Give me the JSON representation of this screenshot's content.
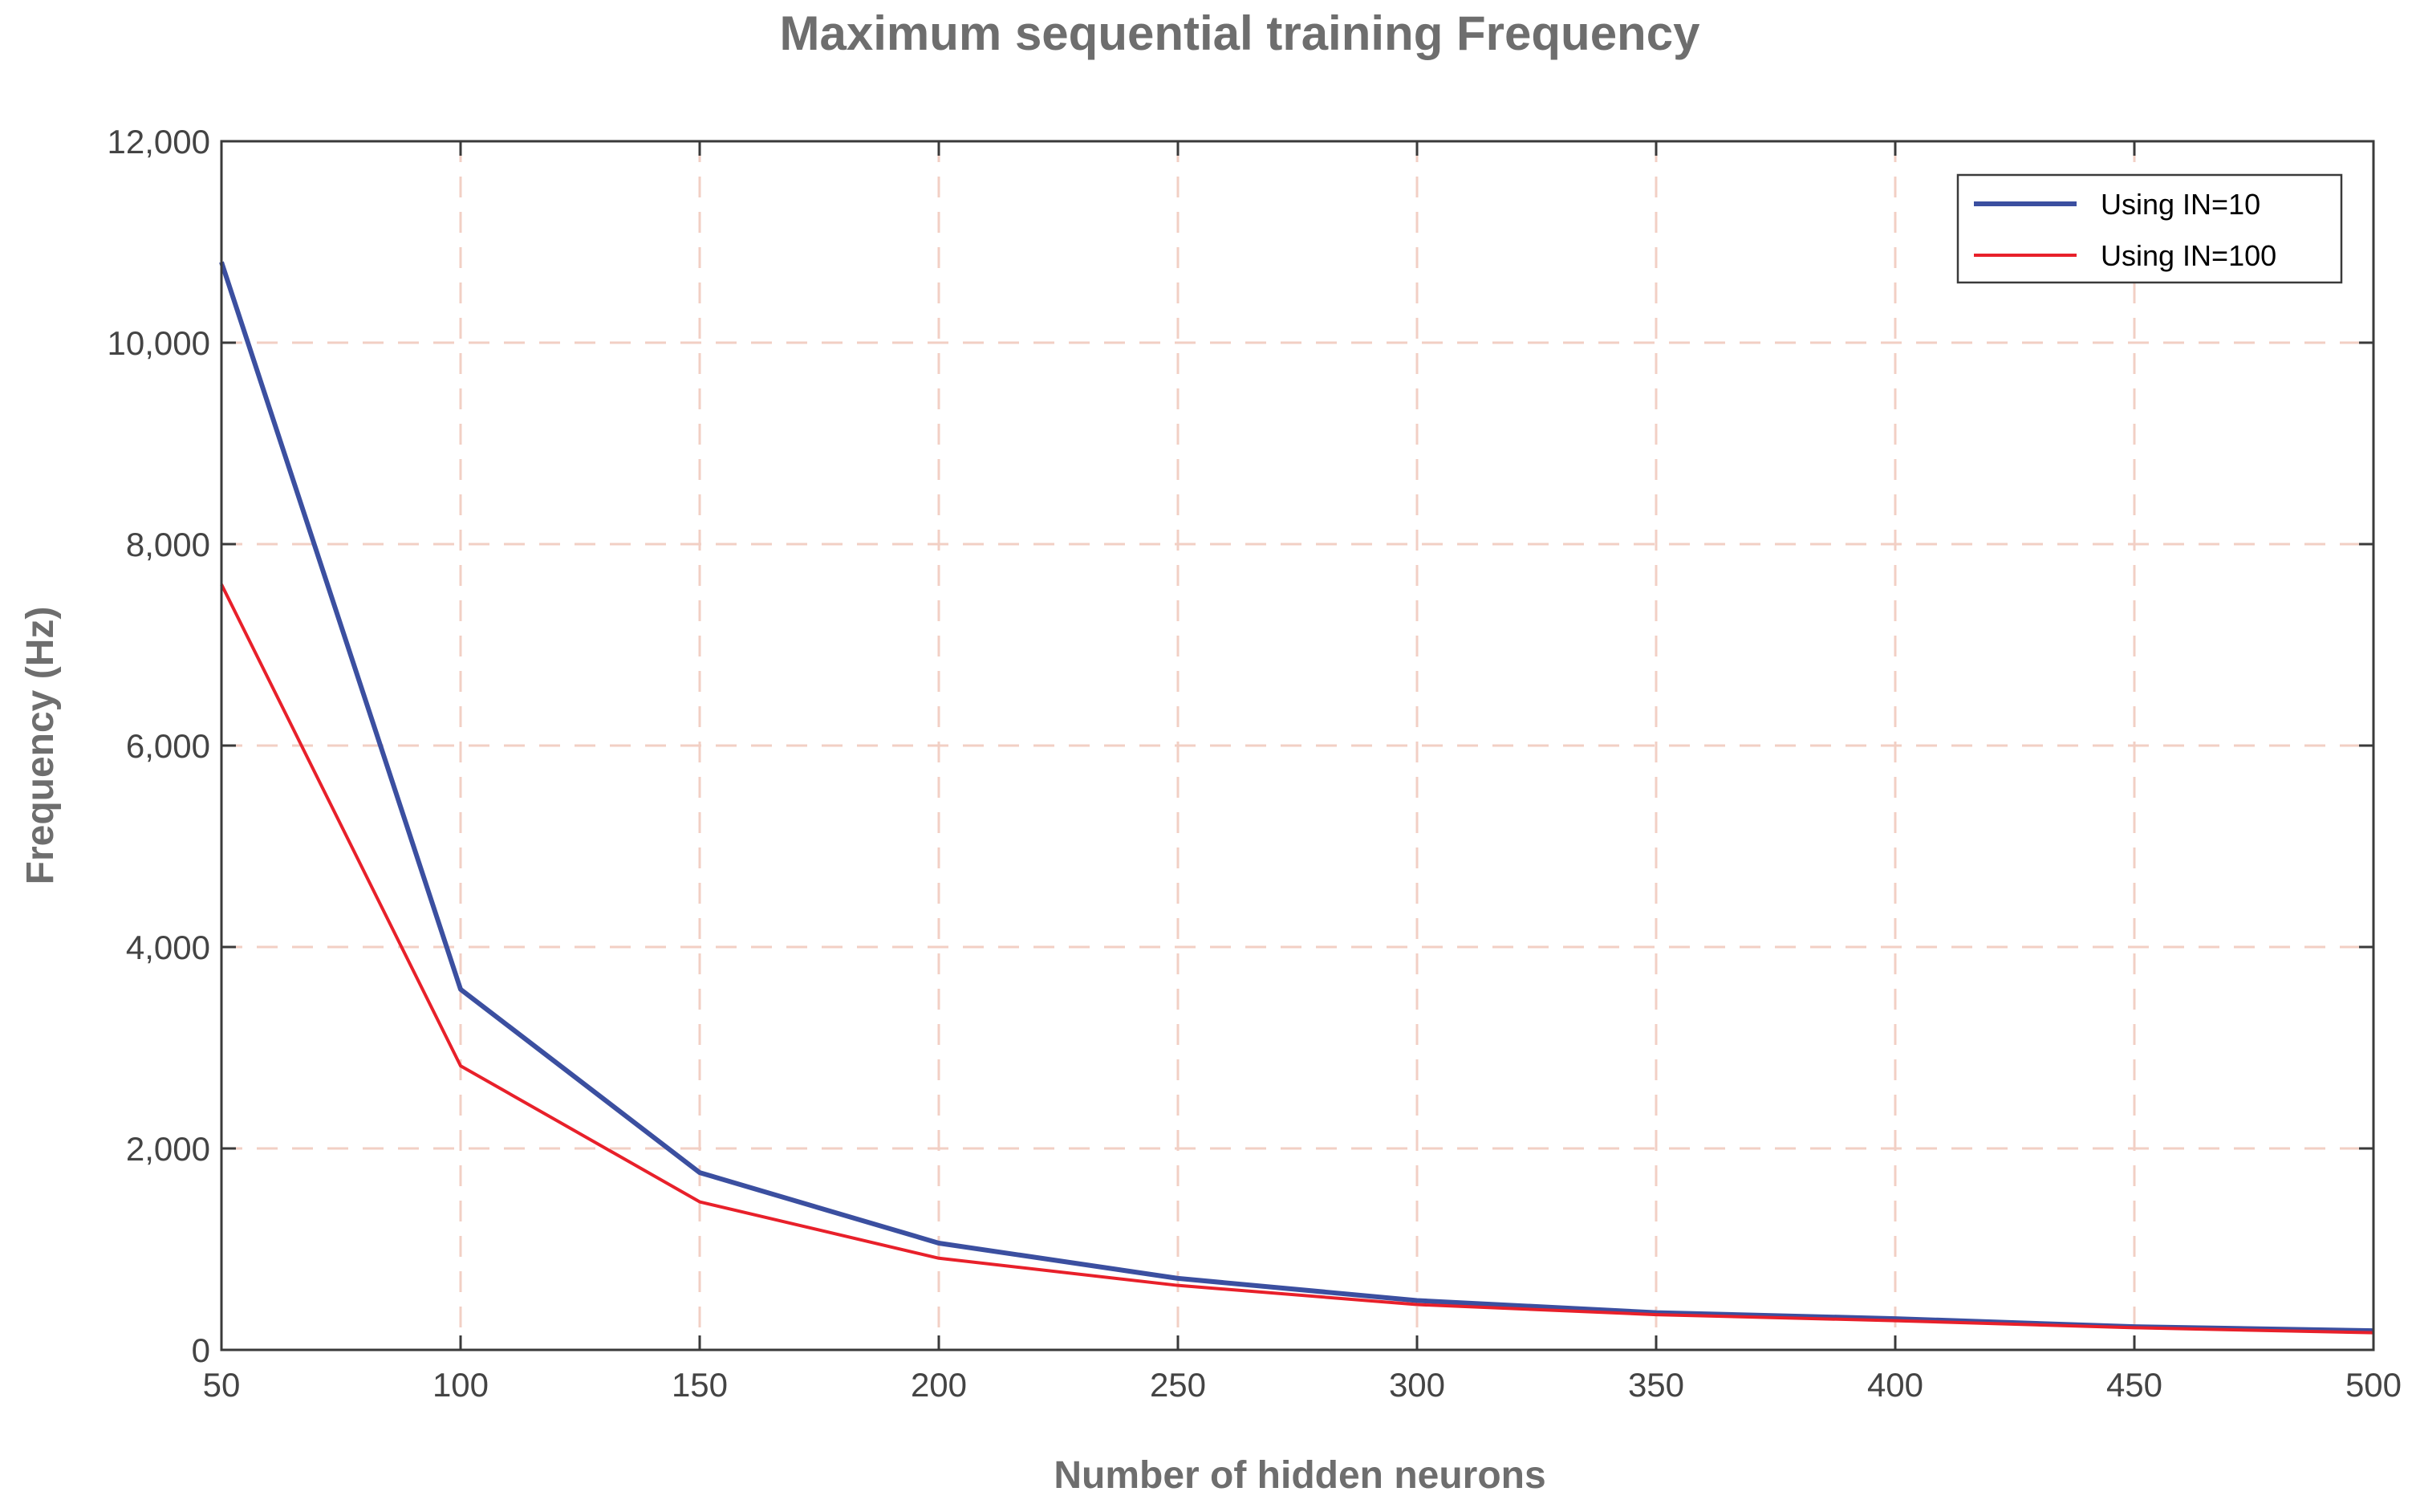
{
  "chart_data": {
    "type": "line",
    "title": "Maximum sequential training Frequency",
    "xlabel": "Number of hidden neurons",
    "ylabel": "Frequency (Hz)",
    "xlim": [
      50,
      500
    ],
    "ylim": [
      0,
      12000
    ],
    "grid": true,
    "legend_position": "top-right",
    "x_ticks": [
      50,
      100,
      150,
      200,
      250,
      300,
      350,
      400,
      450,
      500
    ],
    "x_tick_labels": [
      "50",
      "100",
      "150",
      "200",
      "250",
      "300",
      "350",
      "400",
      "450",
      "500"
    ],
    "y_ticks": [
      0,
      2000,
      4000,
      6000,
      8000,
      10000,
      12000
    ],
    "y_tick_labels": [
      "0",
      "2,000",
      "4,000",
      "6,000",
      "8,000",
      "10,000",
      "12,000"
    ],
    "x": [
      50,
      100,
      150,
      200,
      250,
      300,
      350,
      400,
      450,
      500
    ],
    "series": [
      {
        "name": "Using IN=10",
        "color": "#3b4fa0",
        "values": [
          10800,
          3580,
          1760,
          1060,
          710,
          490,
          370,
          310,
          230,
          190
        ]
      },
      {
        "name": "Using IN=100",
        "color": "#e8202a",
        "values": [
          7600,
          2820,
          1470,
          910,
          640,
          450,
          350,
          290,
          220,
          170
        ]
      }
    ]
  }
}
